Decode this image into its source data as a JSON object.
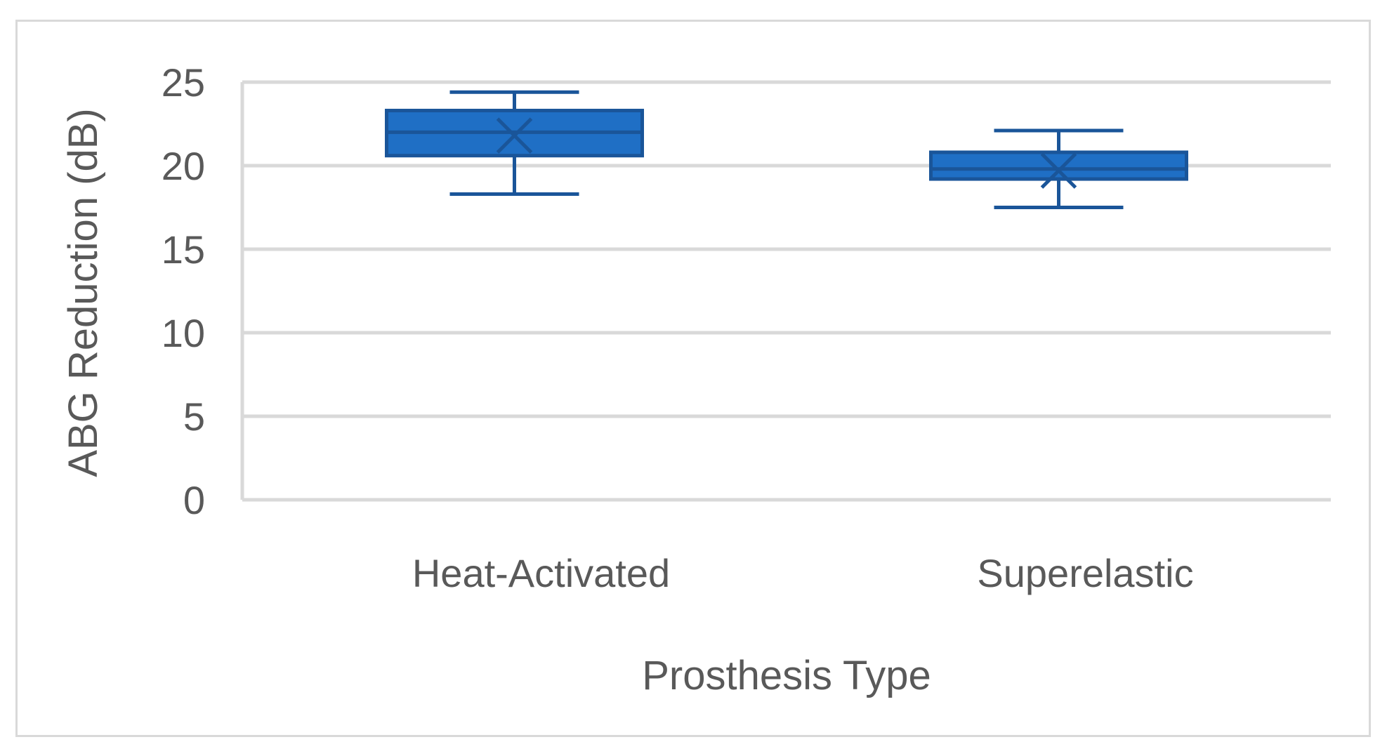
{
  "chart_data": {
    "type": "box",
    "title": "",
    "xlabel": "Prosthesis Type",
    "ylabel": "ABG Reduction (dB)",
    "ylim": [
      0,
      25
    ],
    "yticks": [
      0,
      5,
      10,
      15,
      20,
      25
    ],
    "grid": true,
    "legend": "none",
    "categories": [
      "Heat-Activated",
      "Superelastic"
    ],
    "boxes": [
      {
        "category": "Heat-Activated",
        "min": 18.3,
        "q1": 20.6,
        "median": 22.0,
        "q3": 23.3,
        "max": 24.4,
        "mean": 21.8
      },
      {
        "category": "Superelastic",
        "min": 17.5,
        "q1": 19.2,
        "median": 19.8,
        "q3": 20.8,
        "max": 22.1,
        "mean": 19.7
      }
    ],
    "colors": {
      "box_fill": "#1f6fc5",
      "box_stroke": "#1a5599",
      "grid": "#d9d9d9",
      "text": "#595959"
    }
  }
}
